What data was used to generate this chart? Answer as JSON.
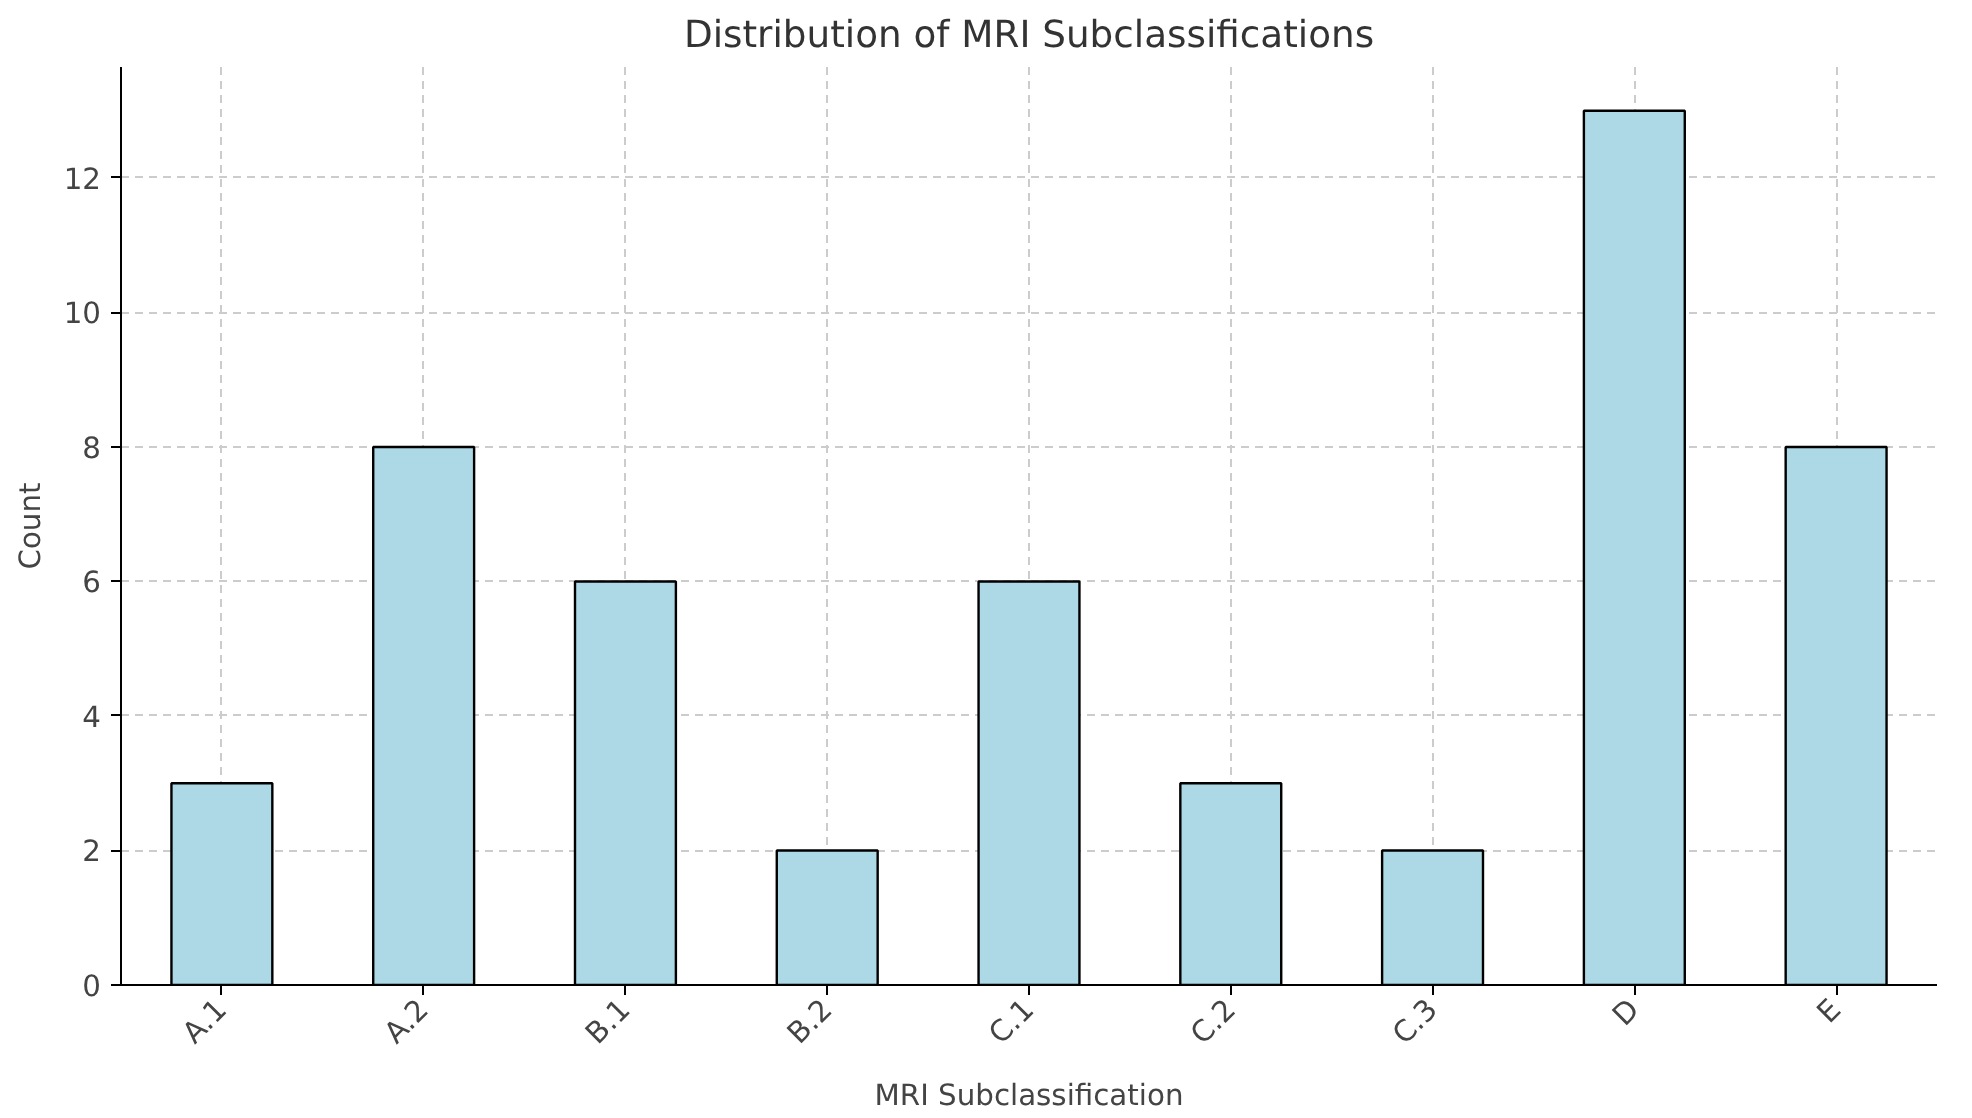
{
  "chart_data": {
    "type": "bar",
    "title": "Distribution of MRI Subclassifications",
    "xlabel": "MRI Subclassification",
    "ylabel": "Count",
    "categories": [
      "A.1",
      "A.2",
      "B.1",
      "B.2",
      "C.1",
      "C.2",
      "C.3",
      "D",
      "E"
    ],
    "values": [
      3,
      8,
      6,
      2,
      6,
      3,
      2,
      13,
      8
    ],
    "color": "#add8e6",
    "ylim": [
      0,
      13.65
    ],
    "yticks": [
      0,
      2,
      4,
      6,
      8,
      10,
      12
    ],
    "grid": true
  }
}
